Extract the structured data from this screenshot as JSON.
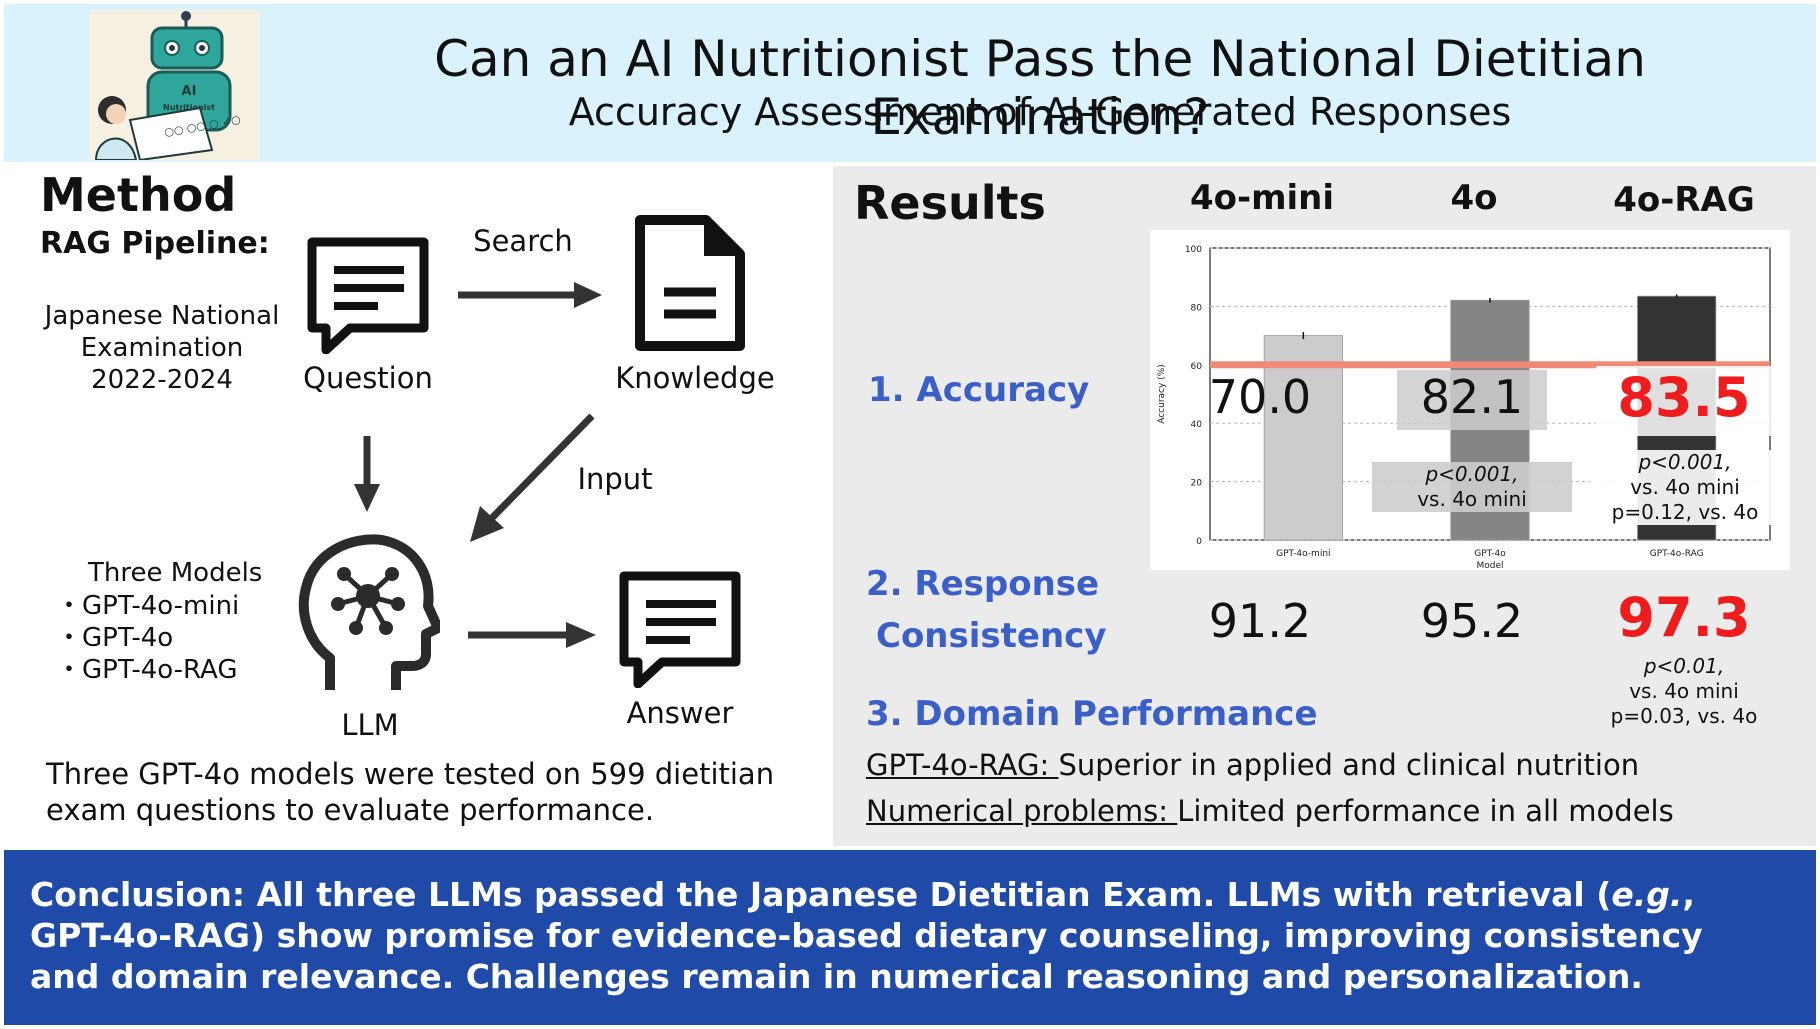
{
  "header": {
    "title": "Can an AI Nutritionist Pass the National Dietitian Examination?",
    "subtitle": "Accuracy Assessment of AI-Generated Responses",
    "logo": {
      "robot_badge_line1": "AI",
      "robot_badge_line2": "Nutritionist",
      "paper_marks": "○○ ○○ ○ ✓○"
    }
  },
  "method": {
    "heading": "Method",
    "pipeline_label": "RAG  Pipeline:",
    "source_lines": [
      "Japanese National",
      "Examination",
      "2022-2024"
    ],
    "question_label": "Question",
    "search_label": "Search",
    "knowledge_label": "Knowledge",
    "input_label": "Input",
    "models_heading": "Three Models",
    "models": [
      "・GPT-4o-mini",
      "・GPT-4o",
      "・GPT-4o-RAG"
    ],
    "llm_label": "LLM",
    "answer_label": "Answer",
    "summary": "Three GPT-4o models were tested on 599 dietitian exam questions to evaluate performance.",
    "icons": [
      "chat-document-icon",
      "arrow-right-icon",
      "document-icon",
      "arrow-down-icon",
      "arrow-diagonal-icon",
      "brain-network-head-icon",
      "chat-answer-icon"
    ]
  },
  "results": {
    "heading": "Results",
    "columns": [
      "4o-mini",
      "4o",
      "4o-RAG"
    ],
    "metric1": "1.  Accuracy",
    "metric2_line1": "2. Response",
    "metric2_line2": "Consistency",
    "metric3": "3. Domain Performance",
    "accuracy_values": [
      "70.0",
      "82.1",
      "83.5"
    ],
    "accuracy_notes_4o": [
      "p<0.001,",
      "vs. 4o mini"
    ],
    "accuracy_notes_rag": [
      "p<0.001,",
      "vs. 4o mini",
      "p=0.12, vs. 4o"
    ],
    "consistency_values": [
      "91.2",
      "95.2",
      "97.3"
    ],
    "consistency_notes_rag": [
      "p<0.01,",
      "vs. 4o mini",
      "p=0.03, vs. 4o"
    ],
    "domain_lines": [
      {
        "lead": "GPT-4o-RAG: ",
        "rest": "Superior in applied and clinical nutrition"
      },
      {
        "lead": "Numerical problems: ",
        "rest": "Limited performance in all models"
      }
    ],
    "highlight_color": "#ee1c1c",
    "metric_color": "#3b5fc8"
  },
  "chart_data": {
    "type": "bar",
    "categories": [
      "GPT-4o-mini",
      "GPT-4o",
      "GPT-4o-RAG"
    ],
    "values": [
      70.0,
      82.1,
      83.5
    ],
    "errors": [
      1.2,
      0.8,
      0.6
    ],
    "colors": [
      "#cccccc",
      "#858585",
      "#333333"
    ],
    "ylabel": "Accuracy (%)",
    "xlabel": "Model",
    "ylim": [
      0,
      100
    ],
    "yticks": [
      0,
      20,
      40,
      60,
      80,
      100
    ],
    "threshold": 60,
    "threshold_color": "#f08a78",
    "grid": true
  },
  "conclusion": {
    "text_parts": [
      {
        "t": "Conclusion: All three LLMs passed the Japanese Dietitian Exam. LLMs with retrieval (",
        "i": false
      },
      {
        "t": "e.g.",
        "i": true
      },
      {
        "t": ", GPT-4o-RAG) show promise for evidence-based dietary counseling, improving consistency and domain relevance. Challenges remain in numerical reasoning and personalization.",
        "i": false
      }
    ]
  }
}
